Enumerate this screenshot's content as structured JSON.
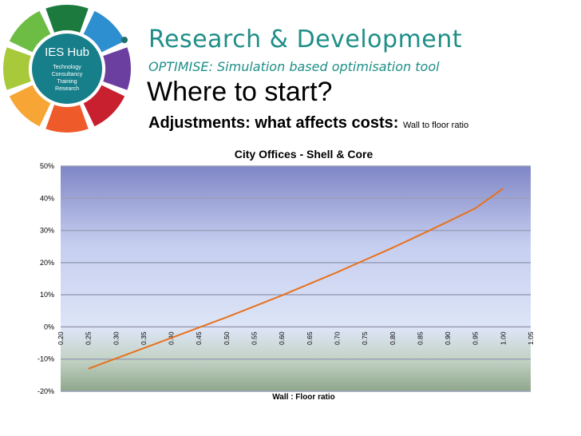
{
  "logo": {
    "name": "IES Hub",
    "lines": [
      "Technology",
      "Consultancy",
      "Training",
      "Research"
    ],
    "colors": [
      "#1d7a3e",
      "#2e8fd0",
      "#6b3fa0",
      "#c8202f",
      "#ef5a2a",
      "#f7a534",
      "#a8c93a",
      "#6dbd45"
    ],
    "center_color": "#177f8a"
  },
  "header": {
    "title": "Research & Development",
    "subtitle": "OPTIMISE: Simulation based optimisation tool",
    "question": "Where to start?",
    "adjustments_bold": "Adjustments: what affects costs:",
    "adjustments_small": "Wall to floor ratio"
  },
  "chart_data": {
    "type": "line",
    "title": "City Offices - Shell & Core",
    "xlabel": "Wall : Floor ratio",
    "ylabel": "",
    "xlim": [
      0.2,
      1.05
    ],
    "ylim": [
      -20,
      50
    ],
    "x_ticks": [
      "0.20",
      "0.25",
      "0.30",
      "0.35",
      "0.40",
      "0.45",
      "0.50",
      "0.55",
      "0.60",
      "0.65",
      "0.70",
      "0.75",
      "0.80",
      "0.85",
      "0.90",
      "0.95",
      "1.00",
      "1.05"
    ],
    "y_ticks": [
      "-20%",
      "-10%",
      "0%",
      "10%",
      "20%",
      "30%",
      "40%",
      "50%"
    ],
    "series": [
      {
        "color": "#e8711c",
        "x": [
          0.25,
          0.3,
          0.35,
          0.4,
          0.45,
          0.5,
          0.55,
          0.6,
          0.65,
          0.7,
          0.75,
          0.8,
          0.85,
          0.9,
          0.95,
          1.0
        ],
        "y": [
          -13,
          -9.8,
          -6.6,
          -3.4,
          -0.2,
          3.0,
          6.4,
          9.8,
          13.4,
          17.0,
          20.8,
          24.6,
          28.6,
          32.7,
          36.9,
          43
        ]
      }
    ],
    "grid": true,
    "legend": "none",
    "background_colors": [
      "#7f86c6",
      "#c6cef0",
      "#dde5f7",
      "#c2d2c4",
      "#8fa78c"
    ]
  }
}
